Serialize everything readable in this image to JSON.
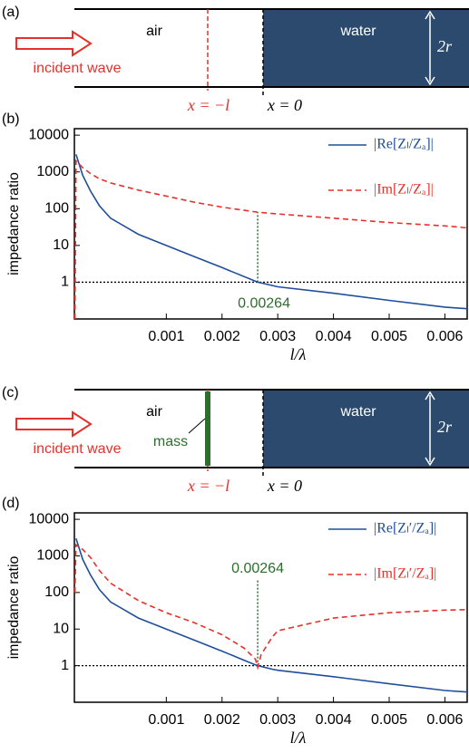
{
  "panels": [
    {
      "label": "(a)",
      "left": "air",
      "right": "water",
      "radius": "2r",
      "source": "incident wave",
      "marker": "x = −l",
      "origin": "x = 0"
    },
    {
      "label": "(c)",
      "left": "air",
      "right": "water",
      "radius": "2r",
      "source": "incident wave",
      "marker": "x = −l",
      "origin": "x = 0",
      "mass": "mass"
    }
  ],
  "chart_data": [
    {
      "type": "line",
      "label": "(b)",
      "ylabel": "impedance ratio",
      "xlabel": "l/λ",
      "y_scale": "log",
      "xlim": [
        -0.00065,
        0.0064
      ],
      "ylim": [
        0.1,
        15000
      ],
      "xticks": [
        0.001,
        0.002,
        0.003,
        0.004,
        0.005,
        0.006
      ],
      "yticks": [
        1,
        10,
        100,
        1000,
        10000
      ],
      "x": [
        -0.00064,
        -0.00062,
        -0.0005,
        -0.00036,
        -0.0002,
        0,
        0.0005,
        0.001,
        0.0015,
        0.002,
        0.00264,
        0.003,
        0.004,
        0.005,
        0.006,
        0.0064
      ],
      "series": [
        {
          "name": "|Re[Zₗ/Zₐ]|",
          "color": "#1f4e9c",
          "dash": false,
          "values": [
            null,
            3000,
            800,
            300,
            120,
            55,
            20,
            10,
            5,
            2.5,
            1,
            0.75,
            0.5,
            0.32,
            0.21,
            0.19
          ]
        },
        {
          "name": "|Im[Zₗ/Zₐ]|",
          "color": "#e8302a",
          "dash": true,
          "values": [
            0.1,
            2000,
            1300,
            900,
            650,
            500,
            320,
            220,
            150,
            110,
            80,
            72,
            55,
            42,
            34,
            30
          ]
        }
      ],
      "marker_x": 0.00264,
      "hline": 1
    },
    {
      "type": "line",
      "label": "(d)",
      "ylabel": "impedance ratio",
      "xlabel": "l/λ",
      "y_scale": "log",
      "xlim": [
        -0.00065,
        0.0064
      ],
      "ylim": [
        0.1,
        15000
      ],
      "xticks": [
        0.001,
        0.002,
        0.003,
        0.004,
        0.005,
        0.006
      ],
      "yticks": [
        1,
        10,
        100,
        1000,
        10000
      ],
      "x": [
        -0.00064,
        -0.00062,
        -0.0005,
        -0.00036,
        -0.0002,
        0,
        0.0005,
        0.001,
        0.0015,
        0.002,
        0.0024,
        0.0026,
        0.00264,
        0.0027,
        0.0029,
        0.003,
        0.004,
        0.005,
        0.006,
        0.0064
      ],
      "series": [
        {
          "name": "|Re[Zₗ′/Zₐ]|",
          "color": "#1f4e9c",
          "dash": false,
          "values": [
            null,
            3000,
            800,
            300,
            120,
            55,
            20,
            10,
            5,
            2.5,
            1.4,
            1.05,
            1,
            0.95,
            0.8,
            0.75,
            0.5,
            0.32,
            0.21,
            0.19
          ]
        },
        {
          "name": "|Im[Zₗ′/Zₐ]|",
          "color": "#e8302a",
          "dash": true,
          "values": [
            100,
            2000,
            1500,
            900,
            400,
            180,
            60,
            28,
            15,
            7,
            3,
            1.5,
            0.9,
            2,
            6,
            9,
            20,
            28,
            33,
            34
          ]
        }
      ],
      "marker_x": 0.00264,
      "hline": 1
    }
  ]
}
